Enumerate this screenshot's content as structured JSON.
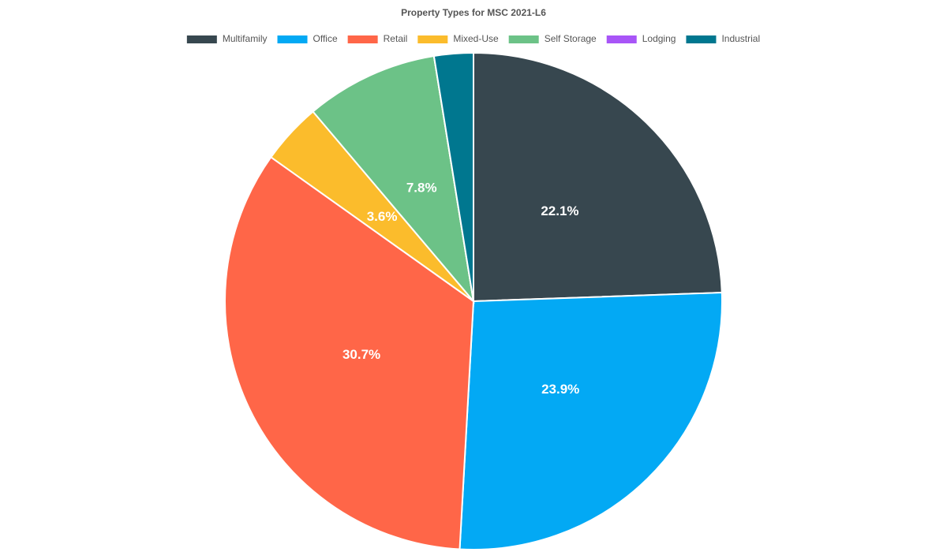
{
  "chart_data": {
    "type": "pie",
    "title": "Property Types for MSC 2021-L6",
    "categories": [
      "Multifamily",
      "Office",
      "Retail",
      "Mixed-Use",
      "Self Storage",
      "Lodging",
      "Industrial"
    ],
    "values": [
      22.1,
      23.9,
      30.7,
      3.6,
      7.8,
      0,
      2.3
    ],
    "value_labels": [
      "22.1%",
      "23.9%",
      "30.7%",
      "3.6%",
      "7.8%",
      null,
      null
    ],
    "colors": [
      "#37474f",
      "#03a9f4",
      "#ff6648",
      "#fbbc2c",
      "#6cc287",
      "#a855f7",
      "#00778f"
    ],
    "legend": "top"
  }
}
